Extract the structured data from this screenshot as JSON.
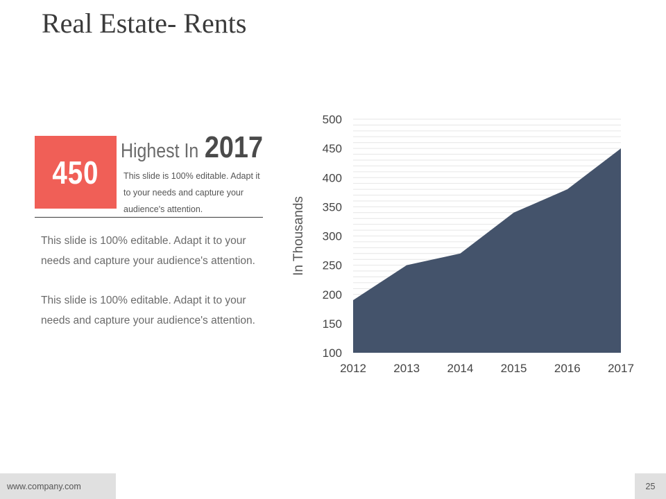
{
  "slide": {
    "title": "Real Estate- Rents",
    "accent_color": "#f05f57",
    "chart_fill_color": "#44536b"
  },
  "highlight": {
    "number": "450",
    "heading_word1": "Highest",
    "heading_word2": "In",
    "heading_year": "2017",
    "body": "This slide is 100% editable. Adapt it to your needs and capture your audience's attention."
  },
  "paragraphs": [
    "This slide is 100% editable. Adapt it to your needs and capture your audience's attention.",
    "This slide is 100% editable. Adapt it to your needs and capture your audience's attention."
  ],
  "footer": {
    "website": "www.company.com",
    "page_number": "25"
  },
  "chart_data": {
    "type": "area",
    "x": [
      "2012",
      "2013",
      "2014",
      "2015",
      "2016",
      "2017"
    ],
    "series": [
      {
        "values": [
          190,
          250,
          270,
          340,
          380,
          450
        ]
      }
    ],
    "title": "",
    "xlabel": "",
    "ylabel": "In Thousands",
    "ylim": [
      100,
      500
    ],
    "yticks": [
      100,
      150,
      200,
      250,
      300,
      350,
      400,
      450,
      500
    ],
    "grid": true
  }
}
